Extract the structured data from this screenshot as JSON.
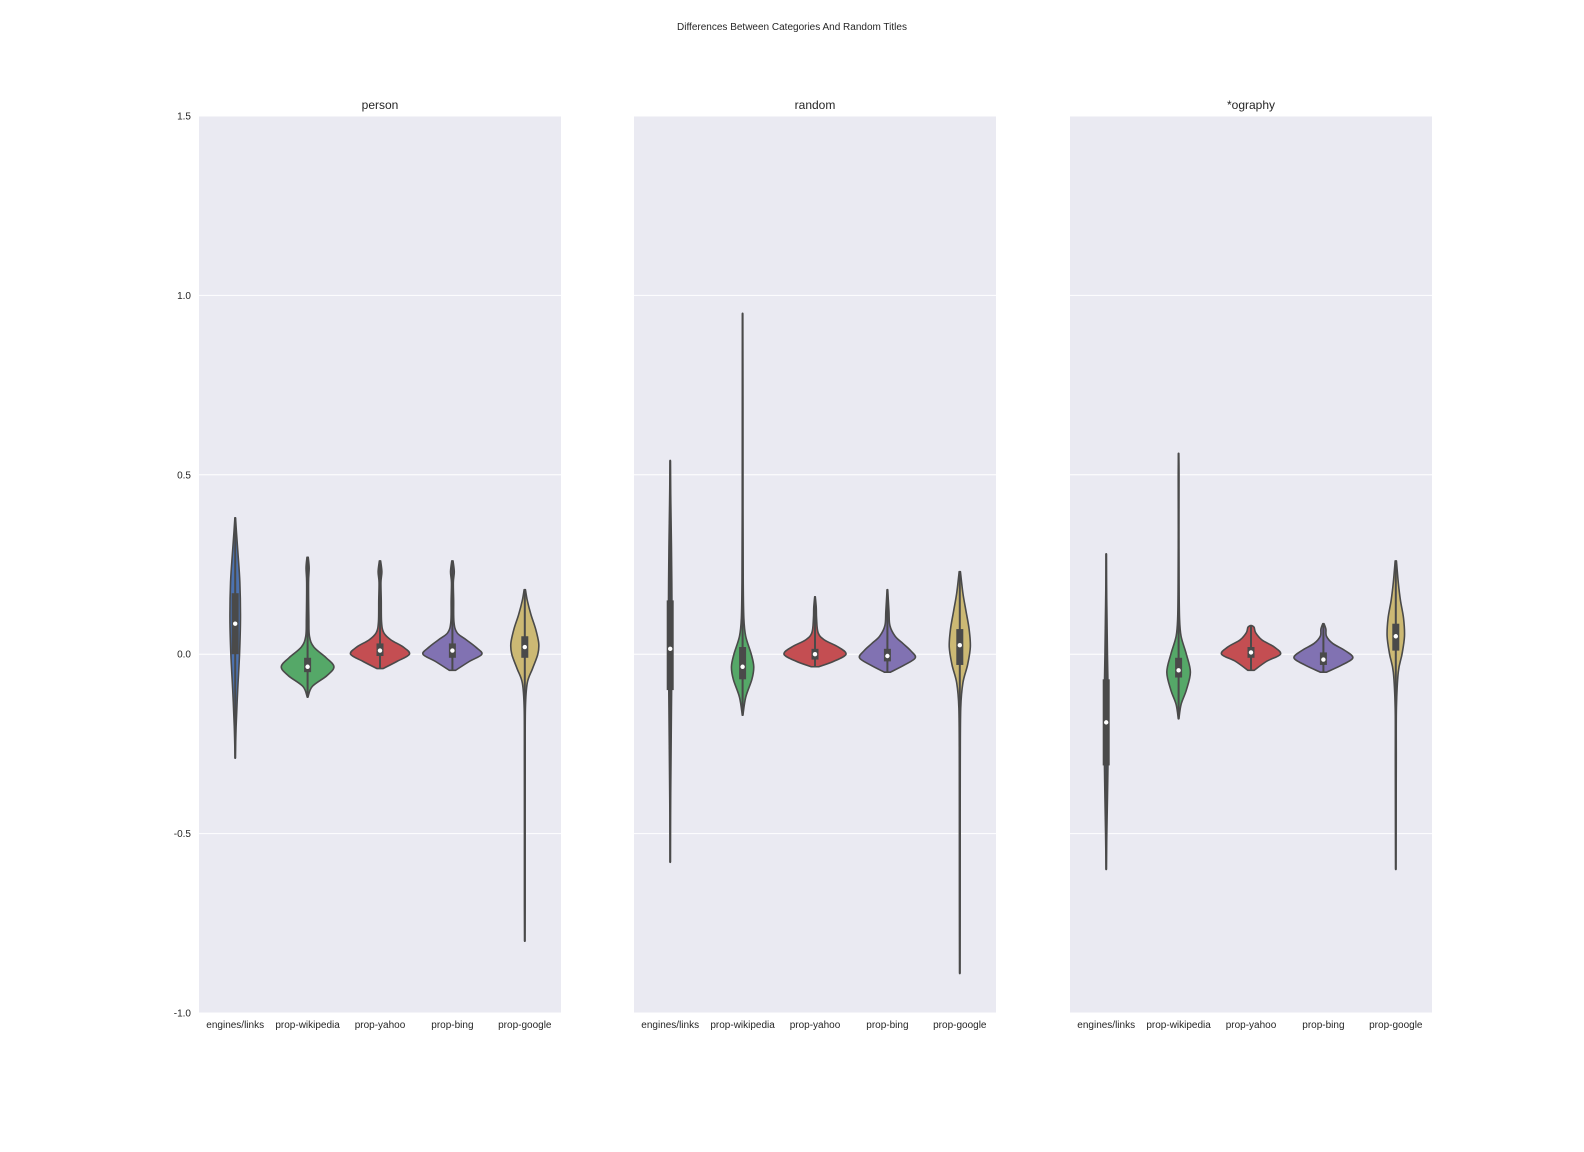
{
  "figure": {
    "title": "Differences Between Categories And Random Titles",
    "background": "#ffffff",
    "panel_background": "#eaeaf2",
    "grid_color": "#ffffff",
    "outline_color": "#4a4a4a",
    "median_color": "#ffffff"
  },
  "chart_data": {
    "type": "violin",
    "shared_y": true,
    "ylim": [
      -1.0,
      1.5
    ],
    "yticks": [
      "1.5",
      "1.0",
      "0.5",
      "0.0",
      "-0.5",
      "-1.0"
    ],
    "ytick_values": [
      1.5,
      1.0,
      0.5,
      0.0,
      -0.5,
      -1.0
    ],
    "grid": true,
    "categories": [
      "engines/links",
      "prop-wikipedia",
      "prop-yahoo",
      "prop-bing",
      "prop-google"
    ],
    "colors": [
      "#4c72b0",
      "#55a868",
      "#c44e52",
      "#8172b2",
      "#ccb974"
    ],
    "panels": [
      {
        "title": "person",
        "violins": [
          {
            "category": "engines/links",
            "min": -0.29,
            "q1": 0.0,
            "median": 0.085,
            "q3": 0.17,
            "max": 0.38,
            "profile": [
              [
                -0.29,
                0.004
              ],
              [
                -0.2,
                0.03
              ],
              [
                -0.1,
                0.08
              ],
              [
                0.0,
                0.14
              ],
              [
                0.1,
                0.17
              ],
              [
                0.2,
                0.15
              ],
              [
                0.28,
                0.09
              ],
              [
                0.34,
                0.04
              ],
              [
                0.38,
                0.01
              ]
            ]
          },
          {
            "category": "prop-wikipedia",
            "min": -0.12,
            "q1": -0.05,
            "median": -0.035,
            "q3": -0.01,
            "max": 0.27,
            "profile": [
              [
                -0.12,
                0.01
              ],
              [
                -0.09,
                0.15
              ],
              [
                -0.06,
                0.62
              ],
              [
                -0.035,
                0.85
              ],
              [
                -0.01,
                0.6
              ],
              [
                0.02,
                0.2
              ],
              [
                0.05,
                0.06
              ],
              [
                0.1,
                0.04
              ],
              [
                0.2,
                0.03
              ],
              [
                0.24,
                0.05
              ],
              [
                0.27,
                0.02
              ]
            ]
          },
          {
            "category": "prop-yahoo",
            "min": -0.04,
            "q1": -0.005,
            "median": 0.01,
            "q3": 0.03,
            "max": 0.26,
            "profile": [
              [
                -0.04,
                0.1
              ],
              [
                -0.02,
                0.55
              ],
              [
                0.0,
                0.95
              ],
              [
                0.02,
                0.75
              ],
              [
                0.04,
                0.35
              ],
              [
                0.06,
                0.12
              ],
              [
                0.09,
                0.05
              ],
              [
                0.15,
                0.04
              ],
              [
                0.2,
                0.03
              ],
              [
                0.23,
                0.06
              ],
              [
                0.26,
                0.02
              ]
            ]
          },
          {
            "category": "prop-bing",
            "min": -0.045,
            "q1": -0.01,
            "median": 0.01,
            "q3": 0.03,
            "max": 0.26,
            "profile": [
              [
                -0.045,
                0.1
              ],
              [
                -0.02,
                0.55
              ],
              [
                0.0,
                0.95
              ],
              [
                0.02,
                0.75
              ],
              [
                0.04,
                0.45
              ],
              [
                0.06,
                0.15
              ],
              [
                0.09,
                0.05
              ],
              [
                0.15,
                0.04
              ],
              [
                0.2,
                0.03
              ],
              [
                0.23,
                0.06
              ],
              [
                0.26,
                0.02
              ]
            ]
          },
          {
            "category": "prop-google",
            "min": -0.8,
            "q1": -0.01,
            "median": 0.02,
            "q3": 0.05,
            "max": 0.18,
            "profile": [
              [
                -0.8,
                0.004
              ],
              [
                -0.7,
                0.01
              ],
              [
                -0.5,
                0.01
              ],
              [
                -0.3,
                0.012
              ],
              [
                -0.15,
                0.02
              ],
              [
                -0.08,
                0.08
              ],
              [
                -0.04,
                0.25
              ],
              [
                0.0,
                0.42
              ],
              [
                0.03,
                0.45
              ],
              [
                0.07,
                0.35
              ],
              [
                0.11,
                0.2
              ],
              [
                0.15,
                0.08
              ],
              [
                0.18,
                0.02
              ]
            ]
          }
        ]
      },
      {
        "title": "random",
        "violins": [
          {
            "category": "engines/links",
            "min": -0.58,
            "q1": -0.1,
            "median": 0.015,
            "q3": 0.15,
            "max": 0.54,
            "profile": [
              [
                -0.58,
                0.004
              ],
              [
                -0.45,
                0.01
              ],
              [
                -0.3,
                0.025
              ],
              [
                -0.15,
                0.04
              ],
              [
                0.0,
                0.055
              ],
              [
                0.15,
                0.055
              ],
              [
                0.3,
                0.04
              ],
              [
                0.42,
                0.02
              ],
              [
                0.54,
                0.004
              ]
            ]
          },
          {
            "category": "prop-wikipedia",
            "min": -0.17,
            "q1": -0.07,
            "median": -0.035,
            "q3": 0.02,
            "max": 0.95,
            "profile": [
              [
                -0.17,
                0.01
              ],
              [
                -0.12,
                0.1
              ],
              [
                -0.07,
                0.3
              ],
              [
                -0.035,
                0.36
              ],
              [
                0.0,
                0.28
              ],
              [
                0.05,
                0.1
              ],
              [
                0.1,
                0.04
              ],
              [
                0.2,
                0.02
              ],
              [
                0.4,
                0.012
              ],
              [
                0.7,
                0.01
              ],
              [
                0.95,
                0.004
              ]
            ]
          },
          {
            "category": "prop-yahoo",
            "min": -0.035,
            "q1": -0.015,
            "median": 0.0,
            "q3": 0.015,
            "max": 0.16,
            "profile": [
              [
                -0.035,
                0.12
              ],
              [
                -0.02,
                0.6
              ],
              [
                0.0,
                1.0
              ],
              [
                0.02,
                0.75
              ],
              [
                0.04,
                0.3
              ],
              [
                0.06,
                0.1
              ],
              [
                0.1,
                0.05
              ],
              [
                0.13,
                0.04
              ],
              [
                0.16,
                0.01
              ]
            ]
          },
          {
            "category": "prop-bing",
            "min": -0.05,
            "q1": -0.02,
            "median": -0.005,
            "q3": 0.015,
            "max": 0.18,
            "profile": [
              [
                -0.05,
                0.1
              ],
              [
                -0.03,
                0.55
              ],
              [
                -0.01,
                0.9
              ],
              [
                0.01,
                0.75
              ],
              [
                0.03,
                0.5
              ],
              [
                0.05,
                0.25
              ],
              [
                0.08,
                0.08
              ],
              [
                0.12,
                0.05
              ],
              [
                0.18,
                0.01
              ]
            ]
          },
          {
            "category": "prop-google",
            "min": -0.89,
            "q1": -0.03,
            "median": 0.025,
            "q3": 0.07,
            "max": 0.23,
            "profile": [
              [
                -0.89,
                0.004
              ],
              [
                -0.7,
                0.01
              ],
              [
                -0.5,
                0.012
              ],
              [
                -0.3,
                0.015
              ],
              [
                -0.15,
                0.03
              ],
              [
                -0.08,
                0.1
              ],
              [
                -0.03,
                0.25
              ],
              [
                0.02,
                0.34
              ],
              [
                0.07,
                0.3
              ],
              [
                0.12,
                0.2
              ],
              [
                0.17,
                0.1
              ],
              [
                0.23,
                0.02
              ]
            ]
          }
        ]
      },
      {
        "title": "*ography",
        "violins": [
          {
            "category": "engines/links",
            "min": -0.6,
            "q1": -0.31,
            "median": -0.19,
            "q3": -0.07,
            "max": 0.28,
            "profile": [
              [
                -0.6,
                0.004
              ],
              [
                -0.5,
                0.02
              ],
              [
                -0.35,
                0.05
              ],
              [
                -0.2,
                0.07
              ],
              [
                -0.1,
                0.06
              ],
              [
                0.0,
                0.04
              ],
              [
                0.1,
                0.025
              ],
              [
                0.2,
                0.01
              ],
              [
                0.28,
                0.004
              ]
            ]
          },
          {
            "category": "prop-wikipedia",
            "min": -0.18,
            "q1": -0.065,
            "median": -0.045,
            "q3": -0.01,
            "max": 0.56,
            "profile": [
              [
                -0.18,
                0.01
              ],
              [
                -0.14,
                0.08
              ],
              [
                -0.1,
                0.25
              ],
              [
                -0.05,
                0.38
              ],
              [
                0.0,
                0.25
              ],
              [
                0.05,
                0.08
              ],
              [
                0.1,
                0.03
              ],
              [
                0.2,
                0.015
              ],
              [
                0.35,
                0.01
              ],
              [
                0.5,
                0.012
              ],
              [
                0.56,
                0.004
              ]
            ]
          },
          {
            "category": "prop-yahoo",
            "min": -0.045,
            "q1": -0.01,
            "median": 0.005,
            "q3": 0.02,
            "max": 0.08,
            "profile": [
              [
                -0.045,
                0.1
              ],
              [
                -0.02,
                0.5
              ],
              [
                0.0,
                0.95
              ],
              [
                0.02,
                0.75
              ],
              [
                0.04,
                0.35
              ],
              [
                0.06,
                0.15
              ],
              [
                0.075,
                0.1
              ],
              [
                0.08,
                0.02
              ]
            ]
          },
          {
            "category": "prop-bing",
            "min": -0.05,
            "q1": -0.03,
            "median": -0.015,
            "q3": 0.005,
            "max": 0.085,
            "profile": [
              [
                -0.05,
                0.1
              ],
              [
                -0.03,
                0.6
              ],
              [
                -0.01,
                0.95
              ],
              [
                0.01,
                0.7
              ],
              [
                0.03,
                0.3
              ],
              [
                0.05,
                0.1
              ],
              [
                0.07,
                0.08
              ],
              [
                0.085,
                0.02
              ]
            ]
          },
          {
            "category": "prop-google",
            "min": -0.6,
            "q1": 0.01,
            "median": 0.05,
            "q3": 0.085,
            "max": 0.26,
            "profile": [
              [
                -0.6,
                0.004
              ],
              [
                -0.45,
                0.01
              ],
              [
                -0.3,
                0.015
              ],
              [
                -0.15,
                0.02
              ],
              [
                -0.05,
                0.08
              ],
              [
                0.0,
                0.2
              ],
              [
                0.05,
                0.28
              ],
              [
                0.1,
                0.25
              ],
              [
                0.15,
                0.15
              ],
              [
                0.2,
                0.08
              ],
              [
                0.26,
                0.02
              ]
            ]
          }
        ]
      }
    ]
  }
}
